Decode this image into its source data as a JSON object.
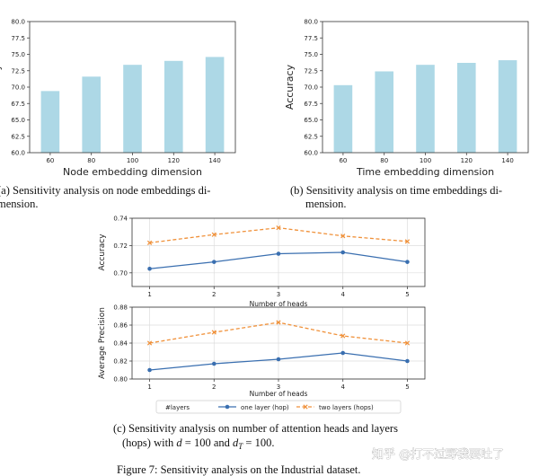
{
  "chart_data": [
    {
      "type": "bar",
      "categories": [
        "60",
        "80",
        "100",
        "120",
        "140"
      ],
      "values": [
        69.4,
        71.6,
        73.4,
        74.0,
        74.6
      ],
      "xlabel": "Node embedding dimension",
      "ylabel": "Accuracy",
      "ylim": [
        60.0,
        80.0
      ],
      "yticks": [
        "60.0",
        "62.5",
        "65.0",
        "67.5",
        "70.0",
        "72.5",
        "75.0",
        "77.5",
        "80.0"
      ],
      "color": "#add8e6"
    },
    {
      "type": "bar",
      "categories": [
        "60",
        "80",
        "100",
        "120",
        "140"
      ],
      "values": [
        70.3,
        72.4,
        73.4,
        73.7,
        74.1
      ],
      "xlabel": "Time embedding dimension",
      "ylabel": "Accuracy",
      "ylim": [
        60.0,
        80.0
      ],
      "yticks": [
        "60.0",
        "62.5",
        "65.0",
        "67.5",
        "70.0",
        "72.5",
        "75.0",
        "77.5",
        "80.0"
      ],
      "color": "#add8e6"
    },
    {
      "type": "line",
      "x": [
        1,
        2,
        3,
        4,
        5
      ],
      "xticks": [
        "1",
        "2",
        "3",
        "4",
        "5"
      ],
      "xlabel": "Number of heads",
      "ylabel": "Accuracy",
      "ylim": [
        0.69,
        0.74
      ],
      "yticks": [
        "0.70",
        "0.72",
        "0.74"
      ],
      "grid": true,
      "series": [
        {
          "name": "one layer (hop)",
          "values": [
            0.703,
            0.708,
            0.714,
            0.715,
            0.708
          ],
          "color": "#3a6fb0",
          "marker": "circle"
        },
        {
          "name": "two layers (hops)",
          "values": [
            0.722,
            0.728,
            0.733,
            0.727,
            0.723
          ],
          "color": "#f0913a",
          "marker": "x",
          "dash": true
        }
      ]
    },
    {
      "type": "line",
      "x": [
        1,
        2,
        3,
        4,
        5
      ],
      "xticks": [
        "1",
        "2",
        "3",
        "4",
        "5"
      ],
      "xlabel": "Number of heads",
      "ylabel": "Average Precision",
      "ylim": [
        0.8,
        0.88
      ],
      "yticks": [
        "0.80",
        "0.82",
        "0.84",
        "0.86",
        "0.88"
      ],
      "grid": true,
      "legend_title": "#layers",
      "legend_position": "bottom",
      "series": [
        {
          "name": "one layer (hop)",
          "values": [
            0.81,
            0.817,
            0.822,
            0.829,
            0.82
          ],
          "color": "#3a6fb0",
          "marker": "circle"
        },
        {
          "name": "two layers (hops)",
          "values": [
            0.84,
            0.852,
            0.863,
            0.848,
            0.84
          ],
          "color": "#f0913a",
          "marker": "x",
          "dash": true
        }
      ]
    }
  ],
  "captions": {
    "a_line1": "(a) Sensitivity analysis on node embeddings di-",
    "a_line2": "mension.",
    "b_line1": "(b) Sensitivity analysis on time embeddings di-",
    "b_line2": "mension.",
    "c_line1": "(c) Sensitivity analysis on number of attention heads and layers",
    "c_line2_pre": "(hops) with ",
    "c_line2_d": "d",
    "c_line2_eq1": " = 100 and ",
    "c_line2_dt": "d",
    "c_line2_T": "T",
    "c_line2_eq2": " = 100.",
    "figure": "Figure 7: Sensitivity analysis on the Industrial dataset."
  },
  "watermark": "知乎 @打不过野我要吐了"
}
